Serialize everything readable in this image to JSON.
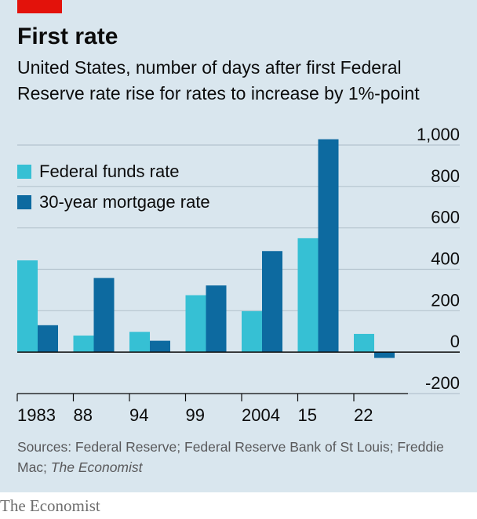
{
  "header": {
    "title": "First rate",
    "subtitle": "United States, number of days after first Federal Reserve rate rise for rates to increase by 1%-point"
  },
  "footer": {
    "source_prefix": "Sources: Federal Reserve; Federal Reserve Bank of St Louis; Freddie Mac; ",
    "source_italic": "The Economist",
    "brand": "The Economist"
  },
  "colors": {
    "background": "#d9e6ee",
    "accent_red": "#e3120b",
    "series_light": "#36c0d4",
    "series_dark": "#0d6aa0",
    "gridline": "#b5c4ce",
    "zero_line": "#0c0c0c"
  },
  "chart_data": {
    "type": "bar",
    "categories": [
      "1983",
      "88",
      "94",
      "99",
      "2004",
      "15",
      "22"
    ],
    "series": [
      {
        "name": "Federal funds rate",
        "values": [
          443,
          80,
          98,
          275,
          198,
          550,
          88
        ]
      },
      {
        "name": "30-year mortgage rate",
        "values": [
          130,
          358,
          55,
          322,
          488,
          1028,
          -28
        ]
      }
    ],
    "y_ticks": [
      1000,
      800,
      600,
      400,
      200,
      0,
      -200
    ],
    "y_tick_labels": [
      "1,000",
      "800",
      "600",
      "400",
      "200",
      "0",
      "-200"
    ],
    "ylim": [
      -200,
      1000
    ],
    "y_axis_side": "right",
    "grid": true,
    "legend_position": "top-left",
    "xlabel": "",
    "ylabel": ""
  }
}
